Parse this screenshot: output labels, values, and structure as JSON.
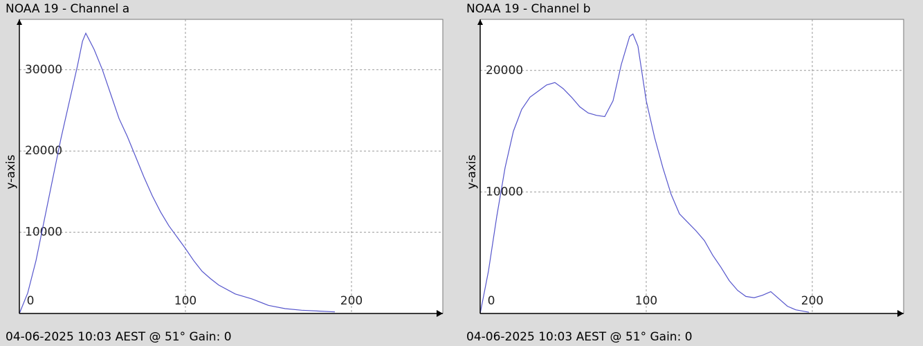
{
  "chart_data": [
    {
      "type": "line",
      "title": "NOAA 19 - Channel a",
      "ylabel": "y-axis",
      "caption": "04-06-2025 10:03 AEST @ 51° Gain: 0",
      "x": [
        0,
        5,
        10,
        15,
        20,
        25,
        30,
        35,
        38,
        40,
        45,
        50,
        55,
        60,
        65,
        70,
        75,
        80,
        85,
        90,
        95,
        100,
        105,
        110,
        115,
        120,
        130,
        140,
        150,
        160,
        170,
        180,
        190
      ],
      "values": [
        0,
        2500,
        6500,
        11500,
        16500,
        21500,
        26000,
        30500,
        33500,
        34500,
        32500,
        30000,
        27000,
        24000,
        21800,
        19300,
        16800,
        14500,
        12500,
        10800,
        9400,
        8000,
        6500,
        5200,
        4300,
        3500,
        2400,
        1800,
        1000,
        600,
        400,
        300,
        200
      ],
      "color": "#5555cc",
      "xlim": [
        0,
        255
      ],
      "ylim": [
        0,
        36200
      ],
      "xticks": [
        0,
        100,
        200
      ],
      "yticks": [
        10000,
        20000,
        30000
      ],
      "grid": true
    },
    {
      "type": "line",
      "title": "NOAA 19 - Channel b",
      "ylabel": "y-axis",
      "caption": "04-06-2025 10:03 AEST @ 51° Gain: 0",
      "x": [
        0,
        5,
        10,
        15,
        20,
        25,
        30,
        35,
        40,
        45,
        50,
        55,
        60,
        65,
        70,
        75,
        80,
        85,
        90,
        92,
        95,
        100,
        105,
        110,
        115,
        120,
        125,
        130,
        135,
        140,
        145,
        150,
        155,
        160,
        165,
        170,
        175,
        180,
        185,
        190,
        198
      ],
      "values": [
        0,
        3500,
        8000,
        12000,
        15000,
        16800,
        17800,
        18300,
        18800,
        19000,
        18500,
        17800,
        17000,
        16500,
        16300,
        16200,
        17500,
        20500,
        22800,
        23000,
        22000,
        17500,
        14500,
        12000,
        9800,
        8200,
        7500,
        6800,
        6000,
        4800,
        3800,
        2700,
        1900,
        1400,
        1300,
        1500,
        1800,
        1200,
        600,
        300,
        100
      ],
      "color": "#5555cc",
      "xlim": [
        0,
        255
      ],
      "ylim": [
        0,
        24200
      ],
      "xticks": [
        0,
        100,
        200
      ],
      "yticks": [
        10000,
        20000
      ],
      "grid": true
    }
  ]
}
